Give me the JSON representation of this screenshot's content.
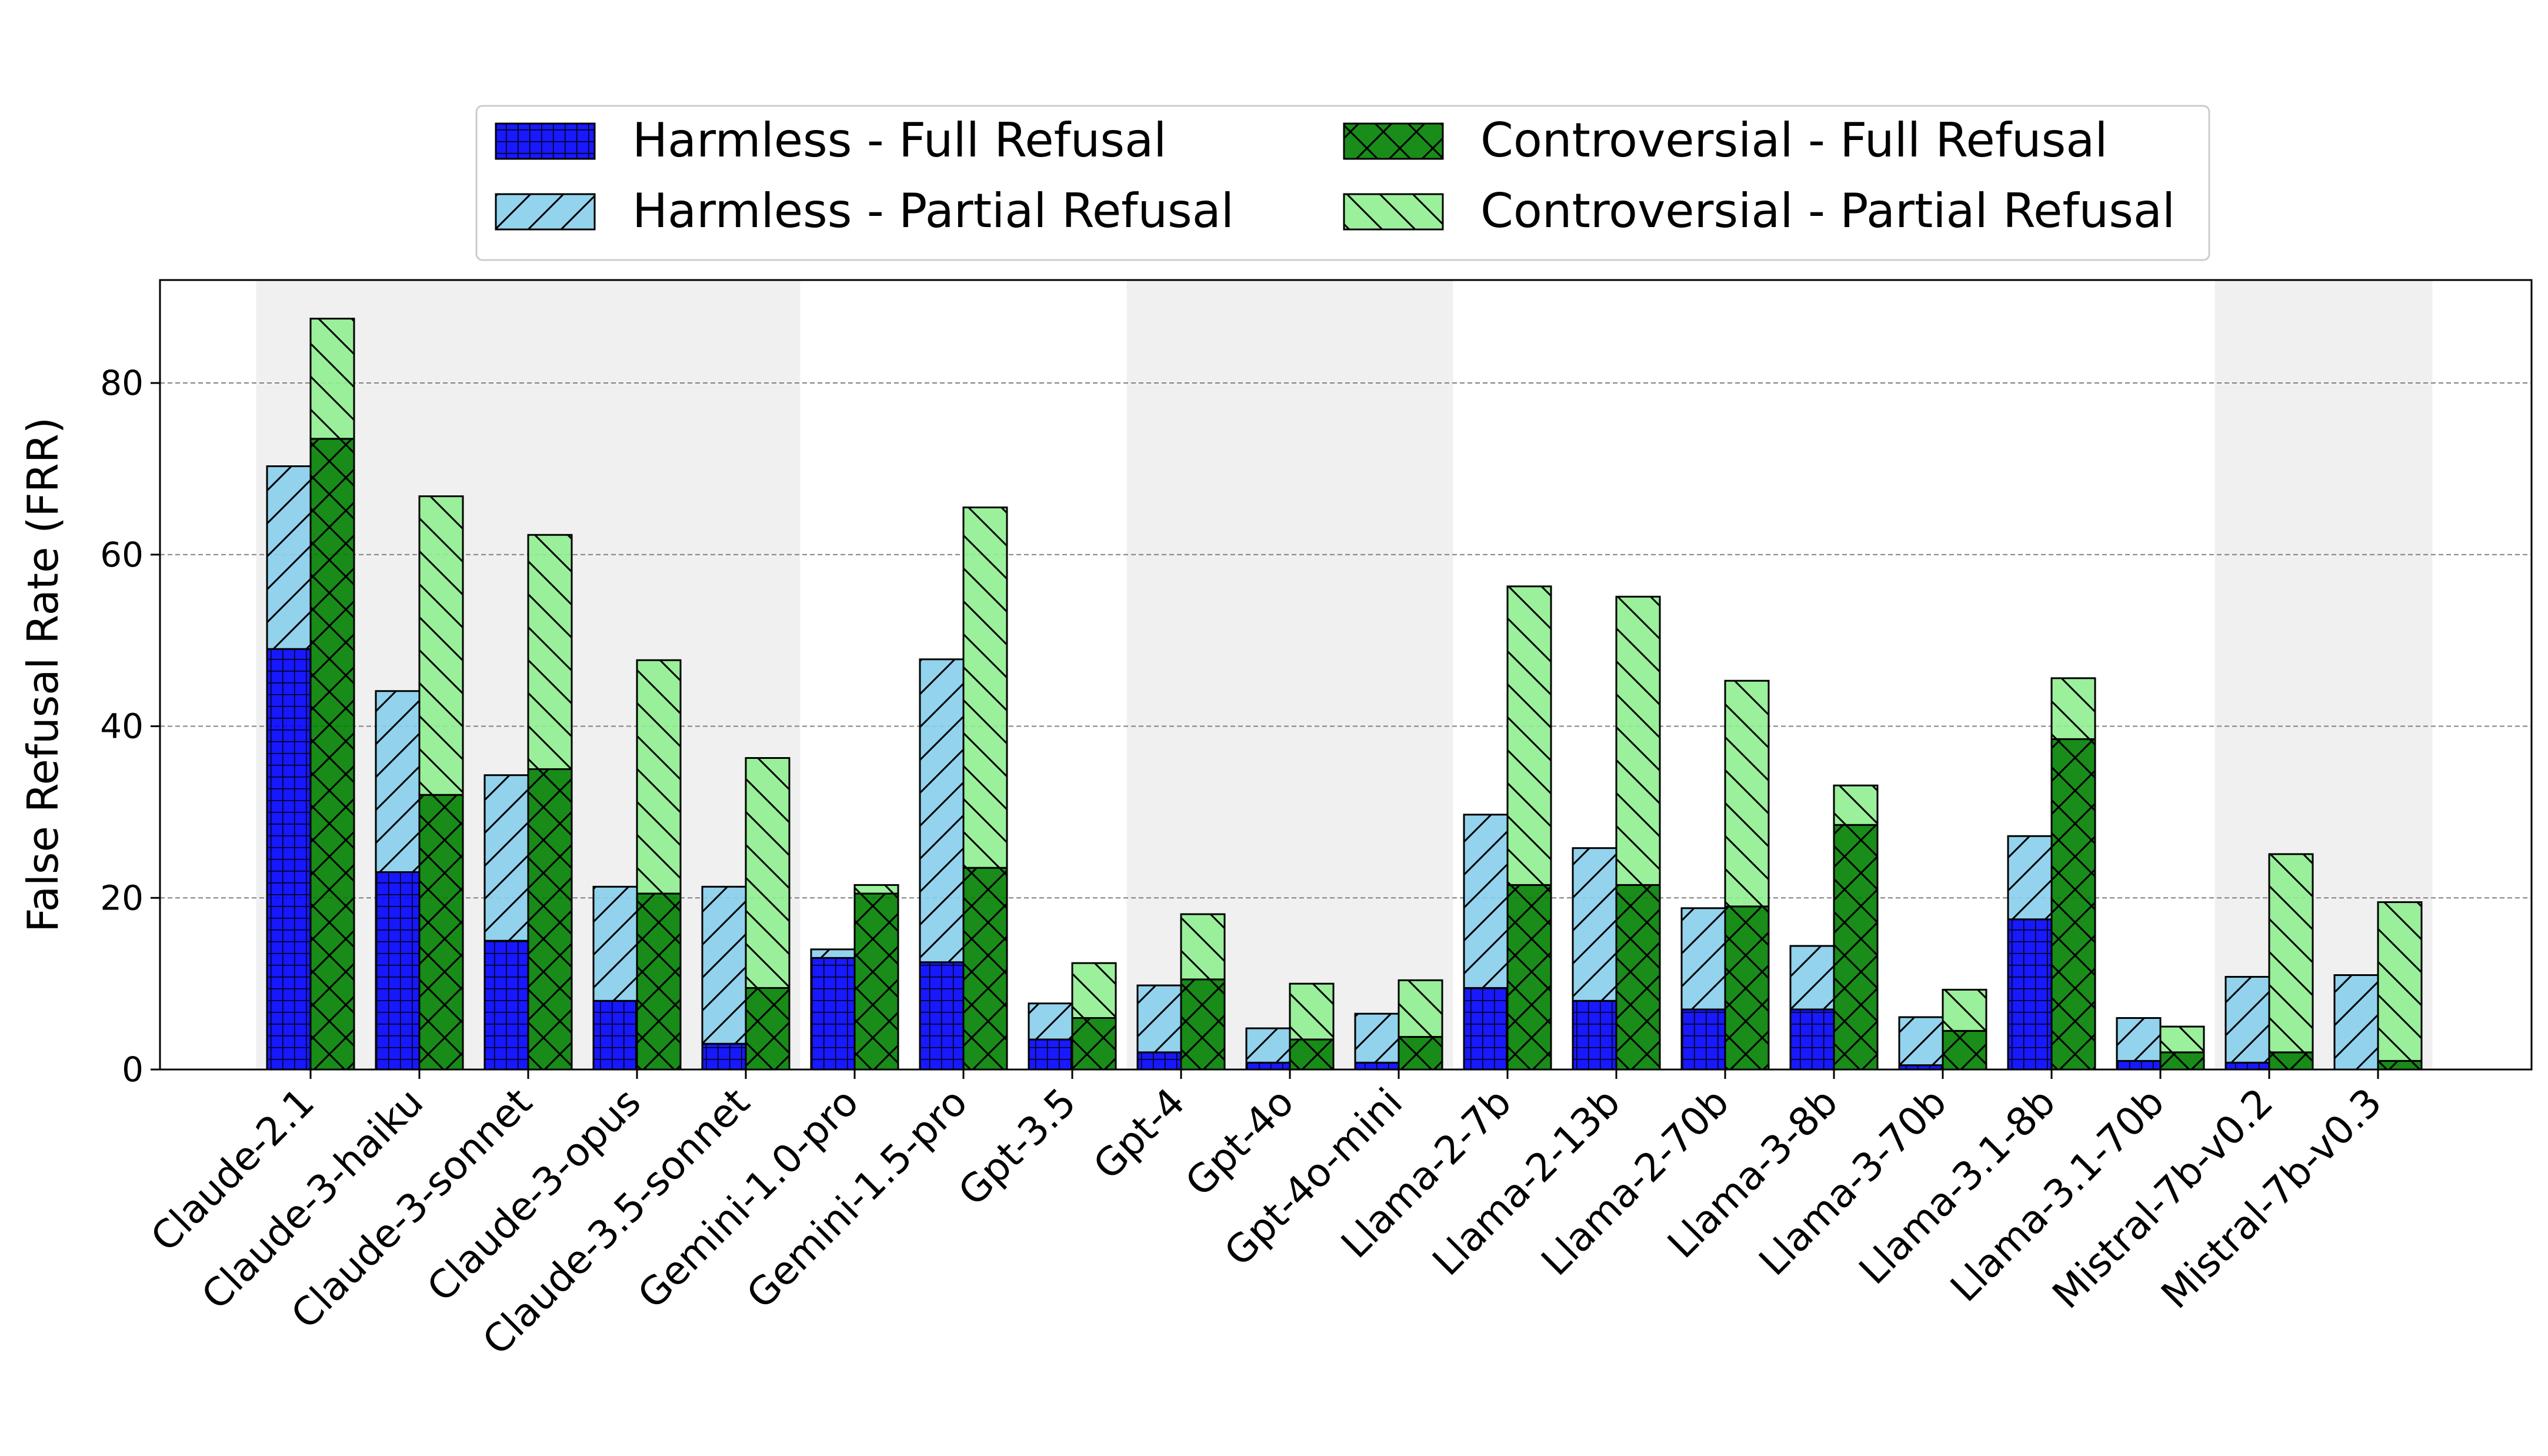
{
  "chart_data": {
    "type": "bar",
    "title": "",
    "xlabel": "",
    "ylabel": "False Refusal Rate (FRR)",
    "ylim": [
      0,
      92
    ],
    "yticks": [
      0,
      20,
      40,
      60,
      80
    ],
    "grid": "horizontal dashed",
    "legend_position": "top-center",
    "categories": [
      "Claude-2.1",
      "Claude-3-haiku",
      "Claude-3-sonnet",
      "Claude-3-opus",
      "Claude-3.5-sonnet",
      "Gemini-1.0-pro",
      "Gemini-1.5-pro",
      "Gpt-3.5",
      "Gpt-4",
      "Gpt-4o",
      "Gpt-4o-mini",
      "Llama-2-7b",
      "Llama-2-13b",
      "Llama-2-70b",
      "Llama-3-8b",
      "Llama-3-70b",
      "Llama-3.1-8b",
      "Llama-3.1-70b",
      "Mistral-7b-v0.2",
      "Mistral-7b-v0.3"
    ],
    "shaded_category_groups": [
      [
        0,
        4
      ],
      [
        8,
        10
      ],
      [
        18,
        19
      ]
    ],
    "series": [
      {
        "name": "Harmless - Full Refusal",
        "stack": "harmless",
        "color": "#0000ff",
        "hatch": "grid",
        "values": [
          49.0,
          23.0,
          15.0,
          8.0,
          3.0,
          13.0,
          12.5,
          3.5,
          2.0,
          0.8,
          0.8,
          9.5,
          8.0,
          7.0,
          7.0,
          0.5,
          17.5,
          1.0,
          0.8,
          0.0
        ]
      },
      {
        "name": "Harmless - Partial Refusal",
        "stack": "harmless",
        "color": "#87ceeb",
        "hatch": "forward-diagonal",
        "values": [
          21.3,
          21.1,
          19.3,
          13.3,
          18.3,
          1.0,
          35.3,
          4.2,
          7.8,
          4.0,
          5.7,
          20.2,
          17.8,
          11.8,
          7.4,
          5.6,
          9.7,
          5.0,
          10.0,
          11.0
        ]
      },
      {
        "name": "Controversial - Full Refusal",
        "stack": "controversial",
        "color": "#008000",
        "hatch": "crosshatch",
        "values": [
          73.5,
          32.0,
          35.0,
          20.5,
          9.5,
          20.5,
          23.5,
          6.0,
          10.5,
          3.5,
          3.8,
          21.5,
          21.5,
          19.0,
          28.5,
          4.5,
          38.5,
          2.0,
          2.0,
          1.0
        ]
      },
      {
        "name": "Controversial - Partial Refusal",
        "stack": "controversial",
        "color": "#90ee90",
        "hatch": "back-diagonal",
        "values": [
          14.0,
          34.8,
          27.3,
          27.2,
          26.8,
          1.0,
          42.0,
          6.4,
          7.6,
          6.5,
          6.6,
          34.8,
          33.6,
          26.3,
          4.6,
          4.8,
          7.1,
          3.0,
          23.1,
          18.5
        ]
      }
    ],
    "colors": {
      "background_shade": "#f0f0f0",
      "edge": "#000000",
      "grid": "#808080"
    }
  }
}
